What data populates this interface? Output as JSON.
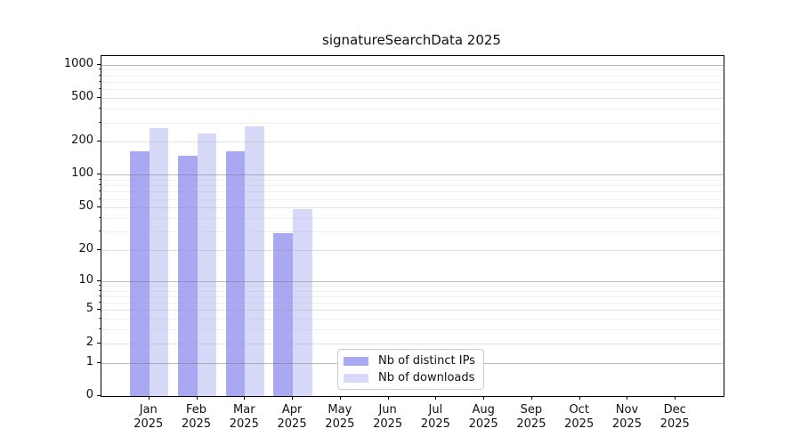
{
  "title": "signatureSearchData 2025",
  "chart_data": {
    "type": "bar",
    "title": "signatureSearchData 2025",
    "categories": [
      "Jan 2025",
      "Feb 2025",
      "Mar 2025",
      "Apr 2025",
      "May 2025",
      "Jun 2025",
      "Jul 2025",
      "Aug 2025",
      "Sep 2025",
      "Oct 2025",
      "Nov 2025",
      "Dec 2025"
    ],
    "series": [
      {
        "name": "Nb of distinct IPs",
        "color": "#a9a9f3",
        "values": [
          163,
          150,
          165,
          29,
          0,
          0,
          0,
          0,
          0,
          0,
          0,
          0
        ]
      },
      {
        "name": "Nb of downloads",
        "color": "#d8d8f9",
        "values": [
          266,
          239,
          277,
          48,
          0,
          0,
          0,
          0,
          0,
          0,
          0,
          0
        ]
      }
    ],
    "xlabel": "",
    "ylabel": "",
    "yscale": "log1p",
    "ylim": [
      0,
      1200
    ],
    "yticks": [
      0,
      1,
      2,
      5,
      10,
      20,
      50,
      100,
      200,
      500,
      1000
    ],
    "yticks_major": [
      1,
      10,
      100,
      1000
    ],
    "yticks_minor_grid": [
      3,
      4,
      6,
      7,
      8,
      9,
      30,
      40,
      60,
      70,
      80,
      90,
      300,
      400,
      600,
      700,
      800,
      900
    ],
    "grid": true,
    "legend_position": "inside-lower-center"
  },
  "legend": {
    "items": [
      {
        "label": "Nb of distinct IPs",
        "color": "#a9a9f3"
      },
      {
        "label": "Nb of downloads",
        "color": "#d8d8f9"
      }
    ]
  }
}
